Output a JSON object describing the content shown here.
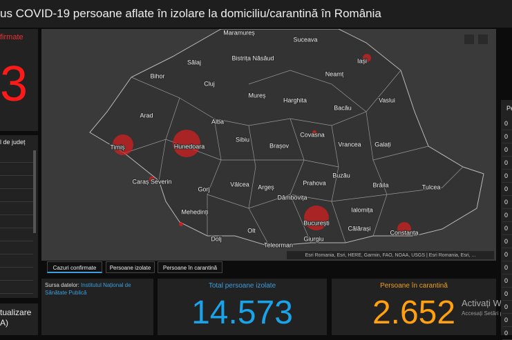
{
  "header": {
    "title": "us COVID-19 persoane aflate în izolare la domiciliu/carantină în România"
  },
  "left_panel": {
    "label": "firmate",
    "value": "3",
    "list_title": "l de județ",
    "update_label": "tualizare",
    "update_sub": "A)"
  },
  "map": {
    "labels": [
      "Maramureș",
      "Suceava",
      "Sălaj",
      "Bistrița Năsăud",
      "Iași",
      "Bihor",
      "Neamț",
      "Cluj",
      "Mureș",
      "Harghita",
      "Bacău",
      "Vaslui",
      "Arad",
      "Alba",
      "Sibiu",
      "Covasna",
      "Vrancea",
      "Galați",
      "Timiș",
      "Hunedoara",
      "Brașov",
      "Caraș Severin",
      "Gorj",
      "Vâlcea",
      "Argeș",
      "Prahova",
      "Buzău",
      "Brăila",
      "Tulcea",
      "Dâmbovița",
      "Mehedinți",
      "Ialomița",
      "București",
      "Constanța",
      "Dolj",
      "Olt",
      "Teleorman",
      "Giurgiu",
      "Călărași"
    ],
    "attribution": "Esri Romania, Esri, HERE, Garmin, FAO, NOAA, USGS | Esri Romania, Esri, ..."
  },
  "tabs": [
    "Cazuri confirmate",
    "Persoane izolate",
    "Persoane în carantină"
  ],
  "source": {
    "label": "Sursa datelor:",
    "link": "Institutul Național de Sănătate Publică"
  },
  "isolated": {
    "label": "Total persoane izolate",
    "value": "14.573"
  },
  "quarantine": {
    "label": "Persoane în carantină",
    "value": "2.652"
  },
  "watermark": {
    "line1": "Activați Wind",
    "line2": "Accesați Setări pe"
  },
  "right_panel": {
    "header": "Pe",
    "rows": [
      "0",
      "0",
      "0",
      "0",
      "0",
      "0",
      "0",
      "0",
      "0",
      "0",
      "0",
      "0",
      "0",
      "0",
      "0",
      "0",
      "0"
    ]
  }
}
